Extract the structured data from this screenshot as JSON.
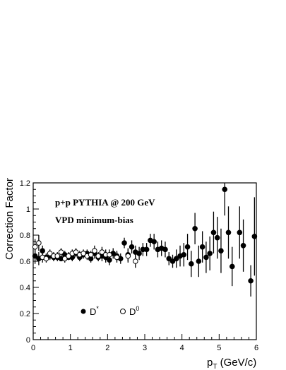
{
  "chart_data": {
    "type": "scatter",
    "title": "",
    "annotations": [
      "p+p PYTHIA @ 200 GeV",
      "VPD minimum-bias"
    ],
    "xlabel_main": "p",
    "xlabel_sub": "T",
    "xlabel_units": " (GeV/c)",
    "ylabel": "Correction Factor",
    "xlim": [
      0,
      6
    ],
    "ylim": [
      0,
      1.2
    ],
    "x_ticks": [
      "0",
      "1",
      "2",
      "3",
      "4",
      "5",
      "6"
    ],
    "y_ticks": [
      "0",
      "0.2",
      "0.4",
      "0.6",
      "0.8",
      "1",
      "1.2"
    ],
    "legend_placement": "bottom-left",
    "series": [
      {
        "name": "D*",
        "marker": "filled-circle",
        "color": "#000000",
        "points": [
          {
            "x": 0.05,
            "y": 0.64,
            "err": 0.06
          },
          {
            "x": 0.15,
            "y": 0.62,
            "err": 0.05
          },
          {
            "x": 0.25,
            "y": 0.68,
            "err": 0.04
          },
          {
            "x": 0.35,
            "y": 0.63,
            "err": 0.03
          },
          {
            "x": 0.45,
            "y": 0.64,
            "err": 0.03
          },
          {
            "x": 0.55,
            "y": 0.63,
            "err": 0.03
          },
          {
            "x": 0.65,
            "y": 0.63,
            "err": 0.03
          },
          {
            "x": 0.75,
            "y": 0.62,
            "err": 0.02
          },
          {
            "x": 0.85,
            "y": 0.65,
            "err": 0.03
          },
          {
            "x": 0.95,
            "y": 0.63,
            "err": 0.02
          },
          {
            "x": 1.05,
            "y": 0.63,
            "err": 0.03
          },
          {
            "x": 1.15,
            "y": 0.66,
            "err": 0.03
          },
          {
            "x": 1.25,
            "y": 0.63,
            "err": 0.03
          },
          {
            "x": 1.35,
            "y": 0.65,
            "err": 0.03
          },
          {
            "x": 1.45,
            "y": 0.66,
            "err": 0.03
          },
          {
            "x": 1.55,
            "y": 0.62,
            "err": 0.03
          },
          {
            "x": 1.65,
            "y": 0.66,
            "err": 0.04
          },
          {
            "x": 1.75,
            "y": 0.63,
            "err": 0.03
          },
          {
            "x": 1.85,
            "y": 0.64,
            "err": 0.04
          },
          {
            "x": 1.95,
            "y": 0.63,
            "err": 0.04
          },
          {
            "x": 2.05,
            "y": 0.61,
            "err": 0.04
          },
          {
            "x": 2.15,
            "y": 0.66,
            "err": 0.04
          },
          {
            "x": 2.25,
            "y": 0.64,
            "err": 0.04
          },
          {
            "x": 2.35,
            "y": 0.62,
            "err": 0.04
          },
          {
            "x": 2.45,
            "y": 0.74,
            "err": 0.04
          },
          {
            "x": 2.55,
            "y": 0.65,
            "err": 0.05
          },
          {
            "x": 2.65,
            "y": 0.71,
            "err": 0.05
          },
          {
            "x": 2.75,
            "y": 0.67,
            "err": 0.05
          },
          {
            "x": 2.85,
            "y": 0.66,
            "err": 0.05
          },
          {
            "x": 2.95,
            "y": 0.69,
            "err": 0.05
          },
          {
            "x": 3.05,
            "y": 0.69,
            "err": 0.05
          },
          {
            "x": 3.15,
            "y": 0.76,
            "err": 0.05
          },
          {
            "x": 3.25,
            "y": 0.75,
            "err": 0.06
          },
          {
            "x": 3.35,
            "y": 0.69,
            "err": 0.06
          },
          {
            "x": 3.45,
            "y": 0.7,
            "err": 0.06
          },
          {
            "x": 3.55,
            "y": 0.69,
            "err": 0.06
          },
          {
            "x": 3.65,
            "y": 0.62,
            "err": 0.05
          },
          {
            "x": 3.75,
            "y": 0.6,
            "err": 0.05
          },
          {
            "x": 3.85,
            "y": 0.62,
            "err": 0.07
          },
          {
            "x": 3.95,
            "y": 0.64,
            "err": 0.08
          },
          {
            "x": 4.05,
            "y": 0.65,
            "err": 0.09
          },
          {
            "x": 4.15,
            "y": 0.71,
            "err": 0.1
          },
          {
            "x": 4.25,
            "y": 0.58,
            "err": 0.1
          },
          {
            "x": 4.35,
            "y": 0.85,
            "err": 0.12
          },
          {
            "x": 4.45,
            "y": 0.6,
            "err": 0.12
          },
          {
            "x": 4.55,
            "y": 0.71,
            "err": 0.12
          },
          {
            "x": 4.65,
            "y": 0.63,
            "err": 0.12
          },
          {
            "x": 4.75,
            "y": 0.66,
            "err": 0.13
          },
          {
            "x": 4.85,
            "y": 0.82,
            "err": 0.16
          },
          {
            "x": 4.95,
            "y": 0.78,
            "err": 0.16
          },
          {
            "x": 5.05,
            "y": 0.68,
            "err": 0.17
          },
          {
            "x": 5.15,
            "y": 1.15,
            "err": 0.2
          },
          {
            "x": 5.25,
            "y": 0.82,
            "err": 0.2
          },
          {
            "x": 5.35,
            "y": 0.56,
            "err": 0.15
          },
          {
            "x": 5.55,
            "y": 0.82,
            "err": 0.2
          },
          {
            "x": 5.65,
            "y": 0.72,
            "err": 0.2
          },
          {
            "x": 5.85,
            "y": 0.45,
            "err": 0.12
          },
          {
            "x": 5.95,
            "y": 0.79,
            "err": 0.3
          }
        ]
      },
      {
        "name": "D0",
        "marker": "open-circle",
        "color": "#000000",
        "points": [
          {
            "x": 0.05,
            "y": 0.71,
            "err": 0.06
          },
          {
            "x": 0.15,
            "y": 0.74,
            "err": 0.06
          },
          {
            "x": 0.25,
            "y": 0.63,
            "err": 0.04
          },
          {
            "x": 0.35,
            "y": 0.62,
            "err": 0.03
          },
          {
            "x": 0.45,
            "y": 0.66,
            "err": 0.03
          },
          {
            "x": 0.55,
            "y": 0.64,
            "err": 0.03
          },
          {
            "x": 0.65,
            "y": 0.64,
            "err": 0.03
          },
          {
            "x": 0.75,
            "y": 0.67,
            "err": 0.03
          },
          {
            "x": 0.85,
            "y": 0.62,
            "err": 0.03
          },
          {
            "x": 0.95,
            "y": 0.64,
            "err": 0.03
          },
          {
            "x": 1.05,
            "y": 0.66,
            "err": 0.03
          },
          {
            "x": 1.15,
            "y": 0.67,
            "err": 0.03
          },
          {
            "x": 1.25,
            "y": 0.65,
            "err": 0.03
          },
          {
            "x": 1.35,
            "y": 0.66,
            "err": 0.03
          },
          {
            "x": 1.45,
            "y": 0.64,
            "err": 0.03
          },
          {
            "x": 1.55,
            "y": 0.65,
            "err": 0.03
          },
          {
            "x": 1.65,
            "y": 0.68,
            "err": 0.04
          },
          {
            "x": 1.75,
            "y": 0.64,
            "err": 0.03
          },
          {
            "x": 1.85,
            "y": 0.67,
            "err": 0.04
          },
          {
            "x": 1.95,
            "y": 0.65,
            "err": 0.04
          },
          {
            "x": 2.05,
            "y": 0.65,
            "err": 0.04
          },
          {
            "x": 2.25,
            "y": 0.63,
            "err": 0.04
          },
          {
            "x": 2.55,
            "y": 0.64,
            "err": 0.05
          },
          {
            "x": 2.75,
            "y": 0.6,
            "err": 0.05
          }
        ]
      }
    ]
  }
}
